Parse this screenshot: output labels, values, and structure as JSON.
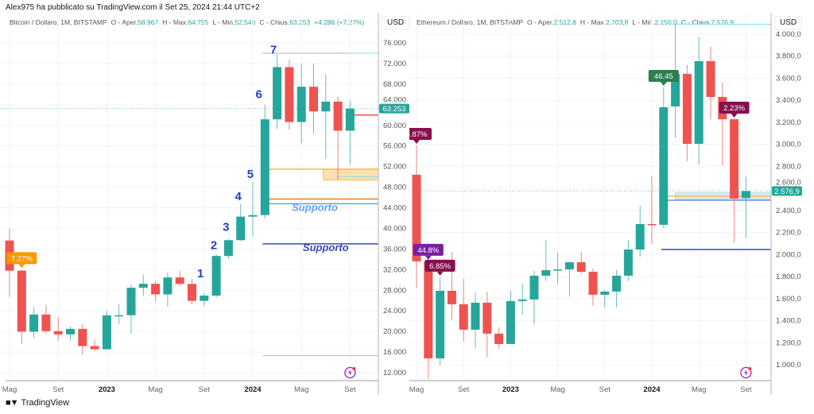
{
  "publisher_line": "Alex975 ha pubblicato su TradingView.com il Set 25, 2024 21:44 UTC+2",
  "footer": {
    "logo_text": "TradingView",
    "logo_mark": "TV"
  },
  "colors": {
    "up": "#26a69a",
    "down": "#ef5350",
    "grid": "#f0f3fa",
    "axis": "#b2b5be"
  },
  "chart_data": [
    {
      "type": "candlestick",
      "symbol": "Bitcoin / Dollaro, 1M, BITSTAMP",
      "legend": {
        "o_label": "O - Aper.",
        "o": "58.967",
        "h_label": "H - Max.",
        "h": "64.795",
        "l_label": "L - Min.",
        "l": "52.546",
        "c_label": "C - Chius.",
        "c": "63.253",
        "change": "+4.286 (+7,27%)"
      },
      "currency": "USD",
      "last_price_label": "63.253",
      "last_price": 63253,
      "yticks": [
        12000,
        16000,
        20000,
        24000,
        28000,
        32000,
        36000,
        40000,
        44000,
        48000,
        52000,
        56000,
        60000,
        64000,
        68000,
        72000,
        76000
      ],
      "ytick_labels": [
        "12.000",
        "16.000",
        "20.000",
        "24.000",
        "28.000",
        "32.000",
        "36.000",
        "40.000",
        "44.000",
        "48.000",
        "52.000",
        "56.000",
        "60.000",
        "64.000",
        "68.000",
        "72.000",
        "76.000"
      ],
      "xticks": [
        {
          "index": 0,
          "label": "Mag",
          "bold": false
        },
        {
          "index": 4,
          "label": "Set",
          "bold": false
        },
        {
          "index": 8,
          "label": "2023",
          "bold": true
        },
        {
          "index": 12,
          "label": "Mag",
          "bold": false
        },
        {
          "index": 16,
          "label": "Set",
          "bold": false
        },
        {
          "index": 20,
          "label": "2024",
          "bold": true
        },
        {
          "index": 24,
          "label": "Mag",
          "bold": false
        },
        {
          "index": 28,
          "label": "Set",
          "bold": false
        }
      ],
      "months": [
        "2022-05",
        "2022-06",
        "2022-07",
        "2022-08",
        "2022-09",
        "2022-10",
        "2022-11",
        "2022-12",
        "2023-01",
        "2023-02",
        "2023-03",
        "2023-04",
        "2023-05",
        "2023-06",
        "2023-07",
        "2023-08",
        "2023-09",
        "2023-10",
        "2023-11",
        "2023-12",
        "2024-01",
        "2024-02",
        "2024-03",
        "2024-04",
        "2024-05",
        "2024-06",
        "2024-07",
        "2024-08",
        "2024-09"
      ],
      "ohlc": [
        [
          37650,
          40000,
          26700,
          31800
        ],
        [
          31800,
          31900,
          17600,
          19950
        ],
        [
          19950,
          24650,
          18800,
          23300
        ],
        [
          23300,
          25200,
          19600,
          20050
        ],
        [
          20050,
          22800,
          18200,
          19430
        ],
        [
          19430,
          20990,
          18200,
          20500
        ],
        [
          20500,
          21450,
          15500,
          17170
        ],
        [
          17170,
          18400,
          16300,
          16540
        ],
        [
          16540,
          23950,
          16500,
          23130
        ],
        [
          23130,
          25250,
          21400,
          23150
        ],
        [
          23150,
          29200,
          19600,
          28480
        ],
        [
          28480,
          31000,
          26950,
          29250
        ],
        [
          29250,
          29850,
          25800,
          27200
        ],
        [
          27200,
          31400,
          24800,
          30480
        ],
        [
          30480,
          31800,
          28850,
          29230
        ],
        [
          29230,
          30200,
          25300,
          25940
        ],
        [
          25940,
          27500,
          24900,
          26960
        ],
        [
          26960,
          35000,
          26550,
          34650
        ],
        [
          34650,
          38000,
          34100,
          37720
        ],
        [
          37720,
          44750,
          37600,
          42280
        ],
        [
          42280,
          48970,
          38500,
          42580
        ],
        [
          42580,
          64000,
          41900,
          61170
        ],
        [
          61170,
          73800,
          59300,
          71300
        ],
        [
          71300,
          72800,
          59200,
          60650
        ],
        [
          60650,
          72000,
          56500,
          67500
        ],
        [
          67500,
          72000,
          58400,
          62700
        ],
        [
          62700,
          70000,
          53500,
          64600
        ],
        [
          64600,
          65600,
          49500,
          58967
        ],
        [
          58967,
          64795,
          52546,
          63253
        ]
      ],
      "wave_labels": [
        {
          "text": "1",
          "index": 15.7,
          "price": 30500
        },
        {
          "text": "2",
          "index": 16.8,
          "price": 36000
        },
        {
          "text": "3",
          "index": 17.8,
          "price": 39500
        },
        {
          "text": "4",
          "index": 18.8,
          "price": 45500
        },
        {
          "text": "5",
          "index": 19.8,
          "price": 49800
        },
        {
          "text": "6",
          "index": 20.5,
          "price": 65300
        },
        {
          "text": "7",
          "index": 21.7,
          "price": 73900
        }
      ],
      "pct_labels": [
        {
          "text": "7.27%",
          "index": 1,
          "price": 32000,
          "color": "#ff9800"
        }
      ],
      "levels": [
        {
          "price": 74000,
          "start": 20.8,
          "color": "#b2b5be",
          "width": 1
        },
        {
          "price": 74000,
          "start": 27.8,
          "color": "#80deea",
          "width": 1
        },
        {
          "price": 51500,
          "start": 21.2,
          "color": "#ffb74d",
          "width": 1.5
        },
        {
          "price": 45700,
          "start": 21.2,
          "color": "#f57c00",
          "width": 1.5
        },
        {
          "price": 44800,
          "start": 21.2,
          "color": "#64a0f0",
          "width": 1.5
        },
        {
          "price": 37000,
          "start": 20.8,
          "color": "#3949ab",
          "width": 1.5
        },
        {
          "price": 15300,
          "start": 20.8,
          "color": "#b2b5be",
          "width": 1
        },
        {
          "price": 62000,
          "start": 27.6,
          "color": "#ef5350",
          "width": 1.5
        },
        {
          "price": 50000,
          "start": 26.9,
          "color": "#80deea",
          "width": 1
        }
      ],
      "zones": [
        {
          "top": 51500,
          "bottom": 49400,
          "start": 25.8,
          "color": "#ffe0b2",
          "border": "#ffb74d"
        }
      ],
      "texts": [
        {
          "text": "Supporto",
          "index": 25.1,
          "price": 43400,
          "color": "#64a0f0"
        },
        {
          "text": "Supporto",
          "index": 26.0,
          "price": 35600,
          "color": "#3949ab"
        }
      ]
    },
    {
      "type": "candlestick",
      "symbol": "Ethereum / Dollaro, 1M, BITSTAMP",
      "legend": {
        "o_label": "O - Aper.",
        "o": "2.512,8",
        "h_label": "H - Max.",
        "h": "2.703,8",
        "l_label": "L - Min.",
        "l": "2.150,0",
        "c_label": "C - Chius.",
        "c": "2.576,9..."
      },
      "currency": "USD",
      "last_price_label": "2.576,9",
      "last_price": 2576.9,
      "yticks": [
        1000,
        1200,
        1400,
        1600,
        1800,
        2000,
        2200,
        2400,
        2600,
        2800,
        3000,
        3200,
        3400,
        3600,
        3800,
        4000
      ],
      "ytick_labels": [
        "1.000,0",
        "1.200,0",
        "1.400,0",
        "1.600,0",
        "1.800,0",
        "2.000,0",
        "2.200,0",
        "2.400,0",
        "2.600,0",
        "2.800,0",
        "3.000,0",
        "3.200,0",
        "3.400,0",
        "3.600,0",
        "3.800,0",
        "4.000,0"
      ],
      "xticks": [
        {
          "index": 0,
          "label": "Mag",
          "bold": false
        },
        {
          "index": 4,
          "label": "Set",
          "bold": false
        },
        {
          "index": 8,
          "label": "2023",
          "bold": true
        },
        {
          "index": 12,
          "label": "Mag",
          "bold": false
        },
        {
          "index": 16,
          "label": "Set",
          "bold": false
        },
        {
          "index": 20,
          "label": "2024",
          "bold": true
        },
        {
          "index": 24,
          "label": "Mag",
          "bold": false
        },
        {
          "index": 28,
          "label": "Set",
          "bold": false
        }
      ],
      "months": [
        "2022-05",
        "2022-06",
        "2022-07",
        "2022-08",
        "2022-09",
        "2022-10",
        "2022-11",
        "2022-12",
        "2023-01",
        "2023-02",
        "2023-03",
        "2023-04",
        "2023-05",
        "2023-06",
        "2023-07",
        "2023-08",
        "2023-09",
        "2023-10",
        "2023-11",
        "2023-12",
        "2024-01",
        "2024-02",
        "2024-03",
        "2024-04",
        "2024-05",
        "2024-06",
        "2024-07",
        "2024-08",
        "2024-09"
      ],
      "ohlc": [
        [
          2724,
          2990,
          1693,
          1938
        ],
        [
          1938,
          1938,
          871,
          1058
        ],
        [
          1058,
          1794,
          993,
          1671
        ],
        [
          1671,
          2025,
          1411,
          1549
        ],
        [
          1549,
          1780,
          1210,
          1318
        ],
        [
          1318,
          1657,
          1153,
          1563
        ],
        [
          1563,
          1664,
          1066,
          1282
        ],
        [
          1282,
          1340,
          1145,
          1188
        ],
        [
          1188,
          1671,
          1188,
          1578
        ],
        [
          1578,
          1736,
          1455,
          1592
        ],
        [
          1592,
          1851,
          1368,
          1808
        ],
        [
          1808,
          2133,
          1758,
          1858
        ],
        [
          1858,
          2017,
          1729,
          1865
        ],
        [
          1865,
          1930,
          1621,
          1930
        ],
        [
          1930,
          2025,
          1820,
          1844
        ],
        [
          1844,
          1873,
          1534,
          1635
        ],
        [
          1635,
          1680,
          1520,
          1664
        ],
        [
          1664,
          1860,
          1520,
          1808
        ],
        [
          1808,
          2133,
          1760,
          2046
        ],
        [
          2046,
          2443,
          1980,
          2277
        ],
        [
          2277,
          2710,
          2097,
          2270
        ],
        [
          2270,
          3517,
          2241,
          3337
        ],
        [
          3344,
          4094,
          3063,
          3640
        ],
        [
          3640,
          3719,
          2846,
          3005
        ],
        [
          3005,
          3971,
          2818,
          3755
        ],
        [
          3755,
          3885,
          3228,
          3430
        ],
        [
          3430,
          3560,
          2810,
          3228
        ],
        [
          3228,
          3228,
          2111,
          2508
        ],
        [
          2512.8,
          2703.8,
          2150,
          2576.9
        ]
      ],
      "wave_labels": [],
      "pct_labels": [
        {
          "text": "8.87%",
          "index": 0,
          "price": 2990,
          "color": "#880e4f"
        },
        {
          "text": "44.8%",
          "index": 1,
          "price": 1938,
          "color": "#7b1fa2"
        },
        {
          "text": "6.85%",
          "index": 2,
          "price": 1794,
          "color": "#880e4f"
        },
        {
          "text": "46.45",
          "index": 21,
          "price": 3517,
          "color": "#2e7d4f"
        },
        {
          "text": "2.23%",
          "index": 27,
          "price": 3228,
          "color": "#880e4f"
        }
      ],
      "levels": [
        {
          "price": 4090,
          "start": 22,
          "color": "#80deea",
          "width": 1
        },
        {
          "price": 2530,
          "start": 20.8,
          "color": "#ffb74d",
          "width": 1.5
        },
        {
          "price": 2493,
          "start": 21,
          "color": "#64a0f0",
          "width": 1.5
        },
        {
          "price": 2046,
          "start": 20.8,
          "color": "#3949ab",
          "width": 1.5
        }
      ],
      "zones": [
        {
          "top": 2560,
          "bottom": 2500,
          "start": 22,
          "color": "#dbe9f7",
          "border": "#b3cde8"
        }
      ],
      "texts": []
    }
  ]
}
